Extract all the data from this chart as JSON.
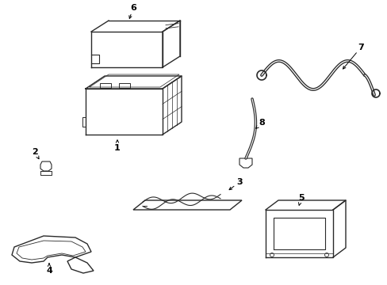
{
  "bg_color": "#ffffff",
  "line_color": "#2a2a2a",
  "line_width": 1.0,
  "figsize": [
    4.89,
    3.6
  ],
  "dpi": 100
}
